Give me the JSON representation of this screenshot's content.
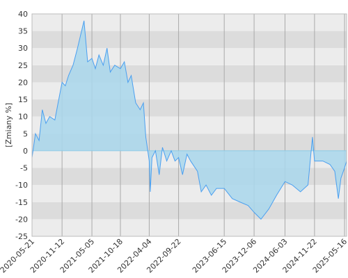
{
  "chart_data": {
    "type": "area",
    "y_label": "[Zmiany %]",
    "x": [
      "2020-05-21",
      "2020-06-10",
      "2020-07-01",
      "2020-07-20",
      "2020-08-10",
      "2020-09-01",
      "2020-10-01",
      "2020-10-20",
      "2020-11-12",
      "2020-12-01",
      "2020-12-20",
      "2021-01-15",
      "2021-02-10",
      "2021-03-01",
      "2021-03-20",
      "2021-04-10",
      "2021-05-05",
      "2021-05-25",
      "2021-06-15",
      "2021-07-10",
      "2021-08-01",
      "2021-08-20",
      "2021-09-15",
      "2021-10-18",
      "2021-11-10",
      "2021-12-01",
      "2021-12-20",
      "2022-01-15",
      "2022-02-10",
      "2022-03-01",
      "2022-03-15",
      "2022-04-04",
      "2022-04-10",
      "2022-04-20",
      "2022-05-10",
      "2022-06-01",
      "2022-06-20",
      "2022-07-15",
      "2022-08-10",
      "2022-09-01",
      "2022-09-22",
      "2022-10-15",
      "2022-11-10",
      "2022-12-01",
      "2023-01-10",
      "2023-02-01",
      "2023-03-01",
      "2023-04-01",
      "2023-05-01",
      "2023-06-15",
      "2023-08-01",
      "2023-09-15",
      "2023-11-01",
      "2023-12-06",
      "2024-01-15",
      "2024-03-01",
      "2024-04-15",
      "2024-06-03",
      "2024-07-15",
      "2024-09-01",
      "2024-10-15",
      "2024-11-10",
      "2024-11-22",
      "2025-01-10",
      "2025-02-20",
      "2025-03-20",
      "2025-04-10",
      "2025-04-25",
      "2025-05-16",
      "2025-05-28"
    ],
    "values": [
      -2,
      5,
      3,
      12,
      8,
      10,
      9,
      14,
      20,
      19,
      22,
      25,
      30,
      34,
      38,
      26,
      27,
      24,
      28,
      25,
      30,
      23,
      25,
      24,
      26,
      20,
      22,
      14,
      12,
      14,
      4,
      -3,
      -12,
      -2,
      0,
      -7,
      1,
      -3,
      0,
      -3,
      -2,
      -7,
      -1,
      -3,
      -6,
      -12,
      -10,
      -13,
      -11,
      -11,
      -14,
      -15,
      -16,
      -18,
      -20,
      -17,
      -13,
      -9,
      -10,
      -12,
      -10,
      4,
      -3,
      -3,
      -4,
      -6,
      -14,
      -8,
      -5,
      -3
    ],
    "color": "#4a9ff0",
    "fill": "#a9d7ec",
    "xlim": [
      "2020-05-21",
      "2025-05-28"
    ],
    "xticks": [
      "2020-05-21",
      "2020-11-12",
      "2021-05-05",
      "2021-10-18",
      "2022-04-04",
      "2022-09-22",
      "2023-06-15",
      "2023-12-06",
      "2024-06-03",
      "2024-11-22",
      "2025-05-16"
    ],
    "ylim": [
      -25,
      40
    ],
    "yticks": [
      -25,
      -20,
      -15,
      -10,
      -5,
      0,
      5,
      10,
      15,
      20,
      25,
      30,
      35,
      40
    ],
    "grid": true
  }
}
